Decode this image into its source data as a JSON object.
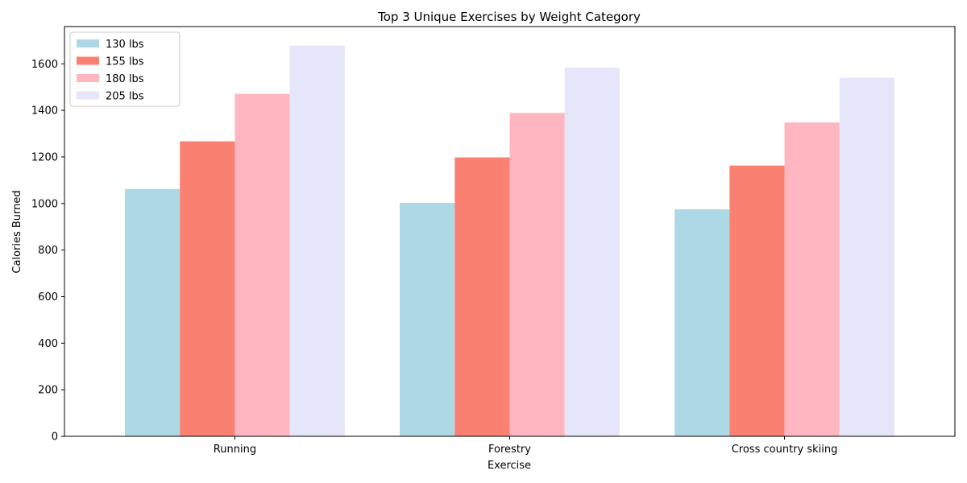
{
  "chart_data": {
    "type": "bar",
    "title": "Top 3 Unique Exercises by Weight Category",
    "xlabel": "Exercise",
    "ylabel": "Calories Burned",
    "categories": [
      "Running",
      "Forestry",
      "Cross country skiing"
    ],
    "ylim": [
      0,
      1760
    ],
    "yticks": [
      0,
      200,
      400,
      600,
      800,
      1000,
      1200,
      1400,
      1600
    ],
    "grid": false,
    "legend_position": "top-left",
    "series": [
      {
        "name": "130 lbs",
        "color": "#add8e6",
        "values": [
          1062,
          1003,
          975
        ]
      },
      {
        "name": "155 lbs",
        "color": "#fa8072",
        "values": [
          1267,
          1198,
          1163
        ]
      },
      {
        "name": "180 lbs",
        "color": "#ffb6c1",
        "values": [
          1471,
          1389,
          1348
        ]
      },
      {
        "name": "205 lbs",
        "color": "#e6e6fa",
        "values": [
          1678,
          1584,
          1540
        ]
      }
    ]
  }
}
